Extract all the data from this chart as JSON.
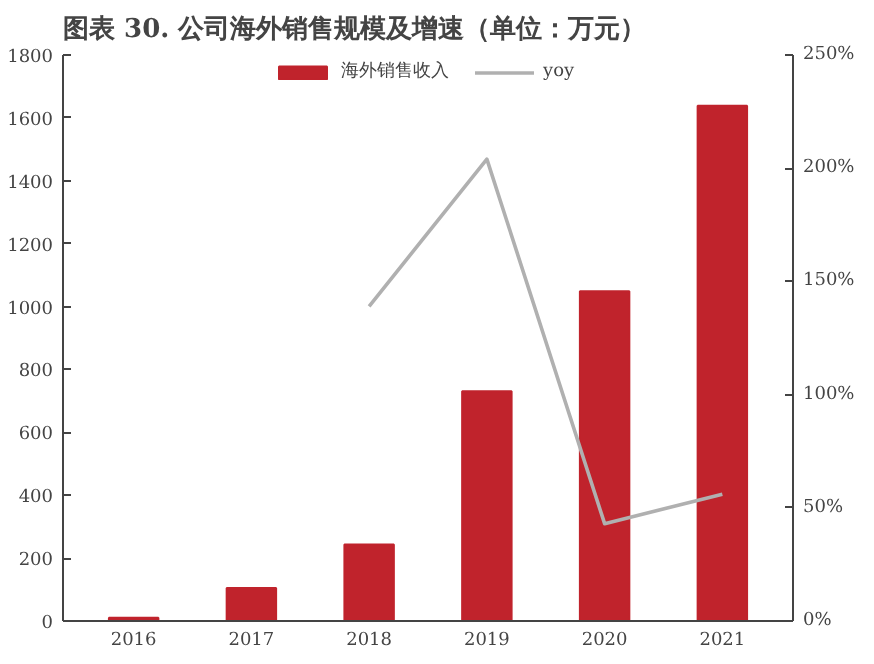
{
  "chart_data": {
    "type": "bar",
    "title": "图表 30. 公司海外销售规模及增速（单位：万元）",
    "categories": [
      "2016",
      "2017",
      "2018",
      "2019",
      "2020",
      "2021"
    ],
    "series": [
      {
        "name": "海外销售收入",
        "color": "#c0232c",
        "values": [
          10,
          105,
          243,
          731,
          1049,
          1639
        ]
      },
      {
        "name": "yoy",
        "type": "line",
        "axis": "y2",
        "color": "#b0b0b0",
        "values": [
          null,
          null,
          139,
          204,
          43,
          56
        ]
      }
    ],
    "ylim": [
      0,
      1800
    ],
    "yticks": [
      0,
      200,
      400,
      600,
      800,
      1000,
      1200,
      1400,
      1600,
      1800
    ],
    "y2lim": [
      0,
      250
    ],
    "y2ticks": [
      {
        "value": 0,
        "label": "0%"
      },
      {
        "value": 50,
        "label": "50%"
      },
      {
        "value": 100,
        "label": "100%"
      },
      {
        "value": 150,
        "label": "150%"
      },
      {
        "value": 200,
        "label": "200%"
      },
      {
        "value": 250,
        "label": "250%"
      }
    ],
    "grid": false,
    "legend": "top",
    "marker": "none",
    "line_style": "solid"
  }
}
